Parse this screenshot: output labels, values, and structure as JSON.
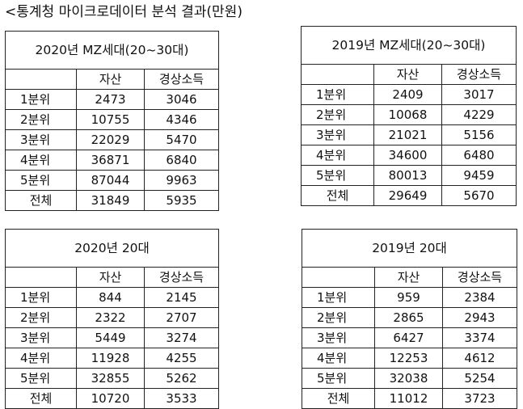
{
  "heading": "<통계청 마이크로데이터 분석 결과(만원)",
  "tables": [
    {
      "title": "2020년 MZ세대(20~30대)",
      "headers": [
        "",
        "자산",
        "경상소득"
      ],
      "rows": [
        [
          "1분위",
          "2473",
          "3046"
        ],
        [
          "2분위",
          "10755",
          "4346"
        ],
        [
          "3분위",
          "22029",
          "5470"
        ],
        [
          "4분위",
          "36871",
          "6840"
        ],
        [
          "5분위",
          "87044",
          "9963"
        ],
        [
          "전체",
          "31849",
          "5935"
        ]
      ]
    },
    {
      "title": "2019년 MZ세대(20~30대)",
      "headers": [
        "",
        "자산",
        "경상소득"
      ],
      "rows": [
        [
          "1분위",
          "2409",
          "3017"
        ],
        [
          "2분위",
          "10068",
          "4229"
        ],
        [
          "3분위",
          "21021",
          "5156"
        ],
        [
          "4분위",
          "34600",
          "6480"
        ],
        [
          "5분위",
          "80013",
          "9459"
        ],
        [
          "전체",
          "29649",
          "5670"
        ]
      ]
    },
    {
      "title": "2020년 20대",
      "headers": [
        "",
        "자산",
        "경상소득"
      ],
      "rows": [
        [
          "1분위",
          "844",
          "2145"
        ],
        [
          "2분위",
          "2322",
          "2707"
        ],
        [
          "3분위",
          "5449",
          "3274"
        ],
        [
          "4분위",
          "11928",
          "4255"
        ],
        [
          "5분위",
          "32855",
          "5262"
        ],
        [
          "전체",
          "10720",
          "3533"
        ]
      ]
    },
    {
      "title": "2019년 20대",
      "headers": [
        "",
        "자산",
        "경상소득"
      ],
      "rows": [
        [
          "1분위",
          "959",
          "2384"
        ],
        [
          "2분위",
          "2865",
          "2943"
        ],
        [
          "3분위",
          "6427",
          "3374"
        ],
        [
          "4분위",
          "12253",
          "4612"
        ],
        [
          "5분위",
          "32038",
          "5254"
        ],
        [
          "전체",
          "11012",
          "3723"
        ]
      ]
    }
  ]
}
